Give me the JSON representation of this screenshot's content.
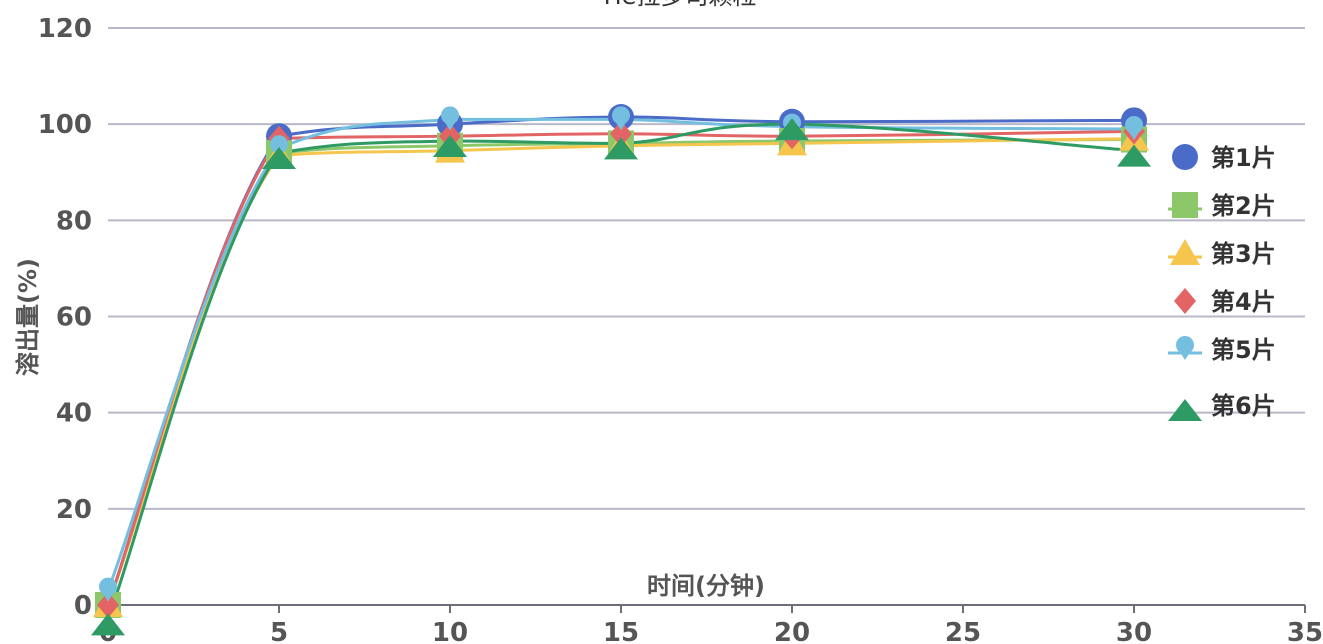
{
  "chart_data": {
    "type": "line",
    "title": "He拉多司颗粒",
    "xlabel": "时间(分钟)",
    "ylabel": "溶出量(%)",
    "x": [
      0,
      5,
      10,
      15,
      20,
      30
    ],
    "xlim": [
      0,
      35
    ],
    "xticks": [
      0,
      5,
      10,
      15,
      20,
      25,
      30,
      35
    ],
    "ylim": [
      0,
      120
    ],
    "yticks": [
      0,
      20,
      40,
      60,
      80,
      100,
      120
    ],
    "grid": "horizontal",
    "smooth": true,
    "legend_position": "right",
    "series": [
      {
        "name": "第1片",
        "color": "#4a6cc8",
        "marker": "circle",
        "values": [
          0,
          97.5,
          100,
          101.5,
          100.5,
          100.8
        ]
      },
      {
        "name": "第2片",
        "color": "#8cc86a",
        "marker": "square",
        "values": [
          0,
          94,
          95.5,
          96,
          96.5,
          96.8
        ]
      },
      {
        "name": "第3片",
        "color": "#f6c54e",
        "marker": "triangle",
        "values": [
          0,
          93.5,
          94.5,
          95.5,
          96,
          97
        ]
      },
      {
        "name": "第4片",
        "color": "#e26464",
        "marker": "diamond",
        "values": [
          0,
          97,
          97.5,
          98,
          97.5,
          98.5
        ]
      },
      {
        "name": "第5片",
        "color": "#74bfe0",
        "marker": "pin",
        "values": [
          3,
          95,
          101,
          101,
          99.5,
          99
        ]
      },
      {
        "name": "第6片",
        "color": "#2e9a64",
        "marker": "triangle-down",
        "values": [
          -3,
          94,
          96.5,
          96,
          100,
          94.5
        ]
      }
    ]
  }
}
